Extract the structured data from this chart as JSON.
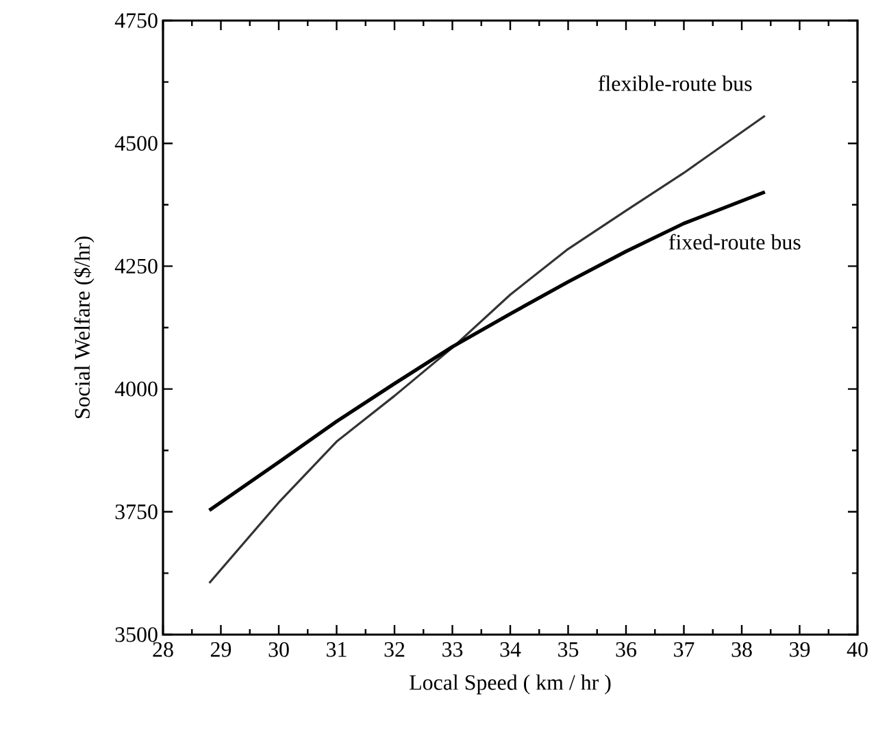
{
  "chart_data": {
    "type": "line",
    "xlabel": "Local Speed ( km / hr )",
    "ylabel": "Social Welfare ($/hr)",
    "xlim": [
      28,
      40
    ],
    "xticks": [
      28,
      29,
      30,
      31,
      32,
      33,
      34,
      35,
      36,
      37,
      38,
      39,
      40
    ],
    "ylim": [
      3500,
      4750
    ],
    "yticks": [
      3500,
      3750,
      4000,
      4250,
      4500,
      4750
    ],
    "grid": false,
    "legend": false,
    "marker": "none",
    "series": [
      {
        "name": "flexible-route bus",
        "color": "#333333",
        "line_style": "solid",
        "x": [
          28.8,
          30,
          31,
          32,
          33,
          34,
          35,
          36,
          37,
          38.4
        ],
        "values": [
          3605,
          3769,
          3893,
          3986,
          4084,
          4192,
          4285,
          4363,
          4440,
          4556
        ]
      },
      {
        "name": "fixed-route bus",
        "color": "#000000",
        "line_style": "solid",
        "x": [
          28.8,
          30,
          31,
          32,
          33,
          34,
          35,
          36,
          37,
          38.4
        ],
        "values": [
          3753,
          3851,
          3934,
          4011,
          4086,
          4153,
          4218,
          4280,
          4337,
          4401
        ]
      }
    ]
  }
}
